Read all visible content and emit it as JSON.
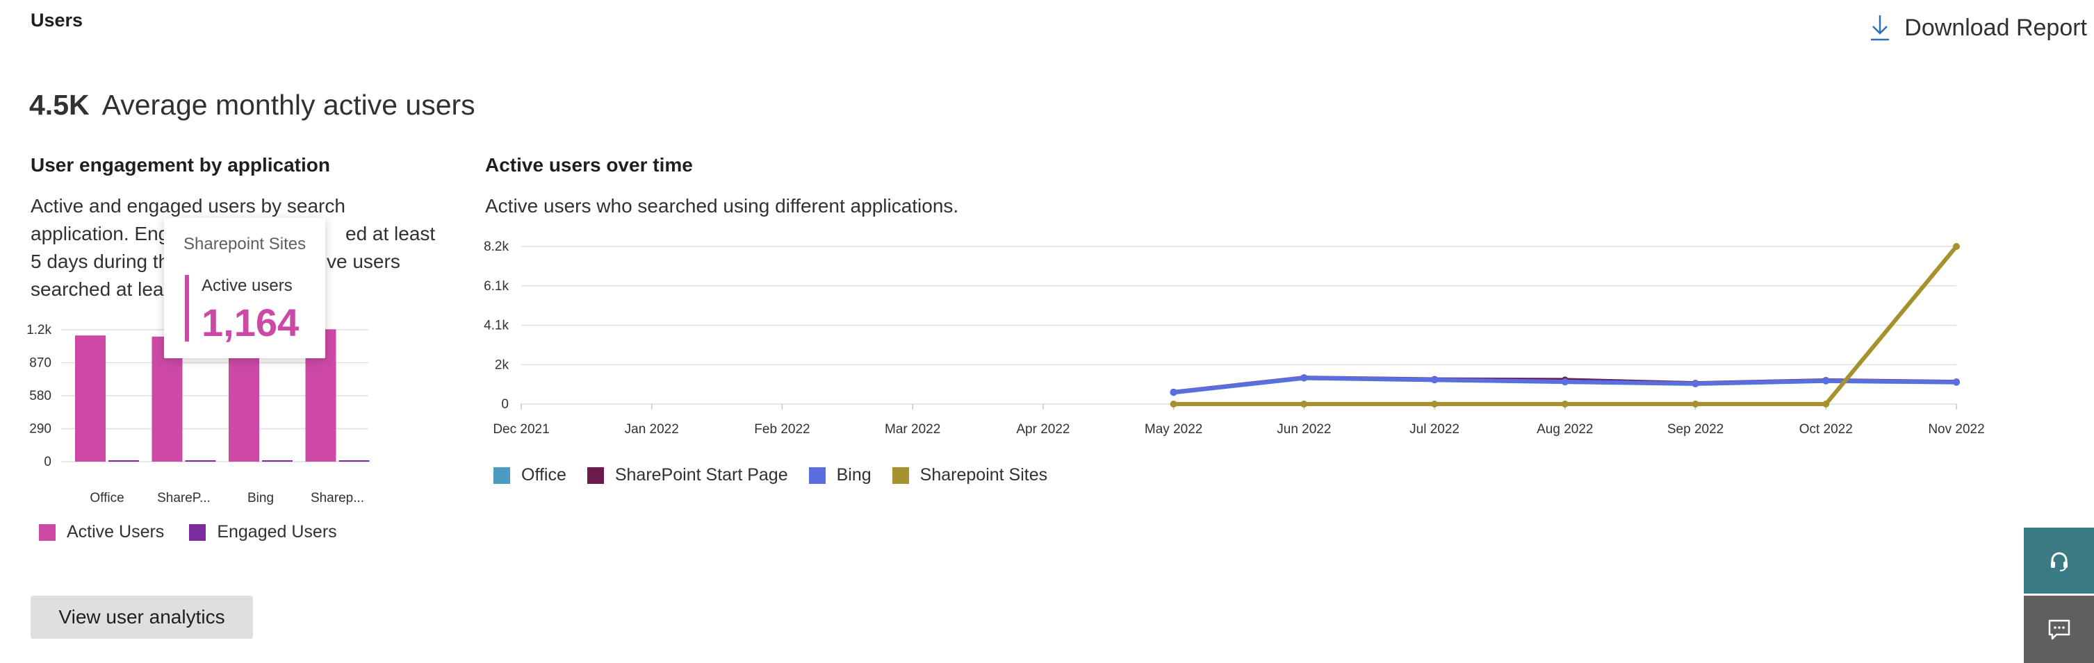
{
  "header": {
    "section_title": "Users",
    "download_label": "Download Report",
    "download_icon": "download-icon"
  },
  "kpi": {
    "value": "4.5K",
    "label": "Average monthly active users"
  },
  "engagement": {
    "title": "User engagement by application",
    "description_lines": [
      "Active and engaged users by search",
      "application. Eng",
      "ed at least",
      "5 days during th",
      "ve users",
      "searched at leas"
    ]
  },
  "tooltip": {
    "title": "Sharepoint Sites",
    "label": "Active users",
    "value": "1,164",
    "color": "#cc4aa5"
  },
  "over_time": {
    "title": "Active users over time",
    "description": "Active users who searched using different applications."
  },
  "chart_data": [
    {
      "type": "bar",
      "categories": [
        "Office",
        "ShareP...",
        "Bing",
        "Sharep..."
      ],
      "y_ticks": [
        "1.2k",
        "870",
        "580",
        "290",
        "0"
      ],
      "ylim": [
        0,
        1160
      ],
      "series": [
        {
          "name": "Active Users",
          "color": "#cc4aa5",
          "values": [
            1110,
            1100,
            1105,
            1164
          ]
        },
        {
          "name": "Engaged Users",
          "color": "#7a2c9e",
          "values": [
            6,
            6,
            6,
            6
          ]
        }
      ],
      "legend": "bottom-left",
      "grid": true
    },
    {
      "type": "line",
      "x": [
        "Dec 2021",
        "Jan 2022",
        "Feb 2022",
        "Mar 2022",
        "Apr 2022",
        "May 2022",
        "Jun 2022",
        "Jul 2022",
        "Aug 2022",
        "Sep 2022",
        "Oct 2022",
        "Nov 2022"
      ],
      "y_ticks": [
        "8.2k",
        "6.1k",
        "4.1k",
        "2k",
        "0"
      ],
      "ylim": [
        0,
        8200
      ],
      "series": [
        {
          "name": "Office",
          "color": "#4a9cc2",
          "values": [
            null,
            null,
            null,
            null,
            null,
            600,
            1350,
            1250,
            1150,
            1050,
            1200,
            1130
          ]
        },
        {
          "name": "SharePoint Start Page",
          "color": "#6b1b4e",
          "values": [
            null,
            null,
            null,
            null,
            null,
            620,
            1370,
            1280,
            1250,
            1080,
            1230,
            1150
          ]
        },
        {
          "name": "Bing",
          "color": "#5b6ee0",
          "values": [
            null,
            null,
            null,
            null,
            null,
            610,
            1360,
            1260,
            1160,
            1060,
            1210,
            1140
          ]
        },
        {
          "name": "Sharepoint Sites",
          "color": "#a6912d",
          "values": [
            null,
            null,
            null,
            null,
            null,
            0,
            0,
            0,
            0,
            0,
            0,
            8200
          ]
        }
      ],
      "legend": "bottom-left",
      "grid": true
    }
  ],
  "actions": {
    "view_analytics": "View user analytics",
    "help_icon": "headset-icon",
    "chat_icon": "chat-icon"
  }
}
